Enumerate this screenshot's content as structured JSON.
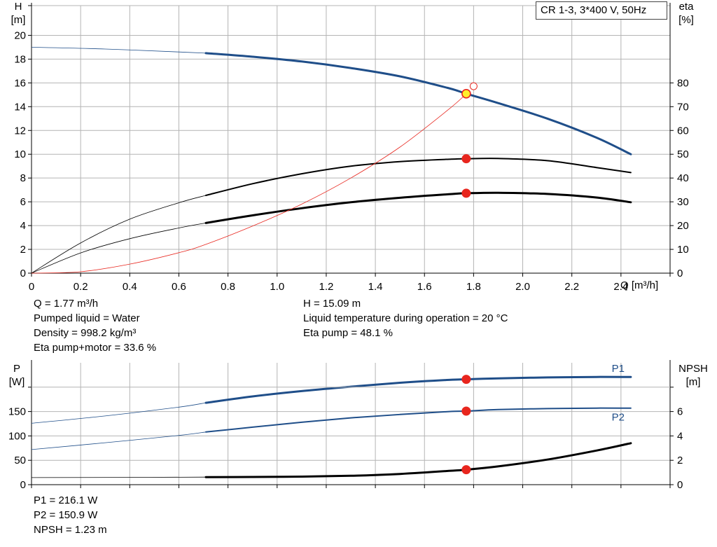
{
  "title": "CR 1-3, 3*400 V, 50Hz",
  "colors": {
    "blue": "#1f4e89",
    "black": "#000000",
    "red": "#e8261e",
    "eta": "#e8261e",
    "grid": "#b4b4b4"
  },
  "top_panel": {
    "ylabel_left": {
      "name": "H",
      "unit": "[m]"
    },
    "ylabel_right": {
      "name": "eta",
      "unit": "[%]"
    },
    "xlabel": "Q [m³/h]",
    "info_left": [
      "Q = 1.77 m³/h",
      "Pumped liquid = Water",
      "Density = 998.2 kg/m³",
      "Eta pump+motor = 33.6 %"
    ],
    "info_right": [
      "H = 15.09 m",
      "Liquid temperature during operation = 20 °C",
      "Eta pump = 48.1 %"
    ]
  },
  "bottom_panel": {
    "ylabel_left": {
      "name": "P",
      "unit": "[W]"
    },
    "ylabel_right": {
      "name": "NPSH",
      "unit": "[m]"
    },
    "info": [
      "P1 = 216.1 W",
      "P2 = 150.9 W",
      "NPSH = 1.23 m"
    ]
  },
  "chart_data": [
    {
      "type": "line",
      "x_ticks": [
        "0",
        "0.2",
        "0.4",
        "0.6",
        "0.8",
        "1.0",
        "1.2",
        "1.4",
        "1.6",
        "1.8",
        "2.0",
        "2.2",
        "2.4"
      ],
      "y_ticks_left": [
        "0",
        "2",
        "4",
        "6",
        "8",
        "10",
        "12",
        "14",
        "16",
        "18",
        "20"
      ],
      "y_ticks_right": [
        "0",
        "10",
        "20",
        "30",
        "40",
        "50",
        "60",
        "70",
        "80"
      ],
      "xlim": [
        0,
        2.6
      ],
      "ylim_left": [
        0,
        22.5
      ],
      "ylim_right": [
        0,
        112.5
      ],
      "grid": true,
      "operating_range": [
        0.71,
        2.44
      ],
      "duty_point": {
        "Q": 1.77,
        "H": 15.09
      },
      "series": [
        {
          "key": "H",
          "axis": "left",
          "color": "blue",
          "x": [
            0,
            0.3,
            0.6,
            0.71,
            0.9,
            1.1,
            1.3,
            1.5,
            1.7,
            1.77,
            1.9,
            2.1,
            2.3,
            2.44
          ],
          "y": [
            19.0,
            18.85,
            18.6,
            18.5,
            18.2,
            17.8,
            17.25,
            16.55,
            15.55,
            15.09,
            14.3,
            13.0,
            11.4,
            10.0
          ]
        },
        {
          "key": "eta_total",
          "axis": "right",
          "color": "black",
          "x": [
            0,
            0.2,
            0.4,
            0.6,
            0.71,
            0.9,
            1.1,
            1.3,
            1.5,
            1.7,
            1.77,
            1.9,
            2.1,
            2.3,
            2.44
          ],
          "y": [
            0,
            8.5,
            14.5,
            19.0,
            21.1,
            24.3,
            27.3,
            29.8,
            31.7,
            33.2,
            33.6,
            33.8,
            33.3,
            31.8,
            29.8
          ]
        },
        {
          "key": "eta_pump",
          "axis": "right",
          "color": "black",
          "x": [
            0,
            0.2,
            0.4,
            0.6,
            0.71,
            0.9,
            1.1,
            1.3,
            1.5,
            1.7,
            1.77,
            1.9,
            2.1,
            2.3,
            2.44
          ],
          "y": [
            0,
            12.7,
            22.7,
            29.6,
            32.7,
            37.6,
            41.8,
            45.0,
            46.9,
            47.9,
            48.1,
            48.2,
            47.3,
            44.4,
            42.3
          ]
        },
        {
          "key": "eta_parabola",
          "axis": "right",
          "color": "eta",
          "x": [
            0,
            0.2,
            0.4,
            0.6,
            0.71,
            0.9,
            1.1,
            1.3,
            1.5,
            1.7,
            1.77
          ],
          "y": [
            0,
            0.6,
            3.8,
            8.6,
            12.1,
            19.8,
            29.0,
            40.0,
            53.0,
            69.0,
            75.4
          ]
        }
      ],
      "points": [
        {
          "x": 1.77,
          "y": 15.09,
          "axis": "left",
          "style": "yellow"
        },
        {
          "x": 1.8,
          "y": 78.6,
          "axis": "right",
          "style": "hollow"
        },
        {
          "x": 1.77,
          "y": 48.1,
          "axis": "right",
          "style": "red"
        },
        {
          "x": 1.77,
          "y": 33.6,
          "axis": "right",
          "style": "red"
        }
      ]
    },
    {
      "type": "line",
      "x_ticks": [
        "0",
        "0.2",
        "0.4",
        "0.6",
        "0.8",
        "1.0",
        "1.2",
        "1.4",
        "1.6",
        "1.8",
        "2.0",
        "2.2",
        "2.4"
      ],
      "y_ticks_left": [
        "0",
        "50",
        "100",
        "150"
      ],
      "y_ticks_right": [
        "0",
        "2",
        "4",
        "6"
      ],
      "xlim": [
        0,
        2.6
      ],
      "ylim_left": [
        0,
        250
      ],
      "ylim_right": [
        0,
        10
      ],
      "grid": true,
      "operating_range": [
        0.71,
        2.44
      ],
      "series": [
        {
          "key": "P1",
          "name": "P1",
          "axis": "left",
          "color": "blue",
          "x": [
            0,
            0.3,
            0.6,
            0.71,
            0.9,
            1.1,
            1.3,
            1.5,
            1.7,
            1.77,
            1.9,
            2.1,
            2.3,
            2.44
          ],
          "y": [
            126,
            141,
            159,
            168,
            181,
            192,
            201,
            209,
            215,
            216.1,
            218,
            220,
            221,
            221
          ]
        },
        {
          "key": "P2",
          "name": "P2",
          "axis": "left",
          "color": "blue",
          "x": [
            0,
            0.3,
            0.6,
            0.71,
            0.9,
            1.1,
            1.3,
            1.5,
            1.7,
            1.77,
            1.9,
            2.1,
            2.3,
            2.44
          ],
          "y": [
            72,
            86,
            101,
            108,
            118,
            128,
            137,
            144,
            150,
            150.9,
            154,
            156,
            157,
            157
          ]
        },
        {
          "key": "NPSH",
          "axis": "right",
          "color": "black",
          "x": [
            0,
            0.4,
            0.71,
            0.9,
            1.1,
            1.3,
            1.5,
            1.7,
            1.77,
            1.9,
            2.1,
            2.3,
            2.44
          ],
          "y": [
            0.58,
            0.6,
            0.62,
            0.63,
            0.66,
            0.73,
            0.88,
            1.13,
            1.23,
            1.5,
            2.06,
            2.8,
            3.4
          ]
        }
      ],
      "points": [
        {
          "x": 1.77,
          "y": 216.1,
          "axis": "left",
          "style": "red"
        },
        {
          "x": 1.77,
          "y": 150.9,
          "axis": "left",
          "style": "red"
        },
        {
          "x": 1.77,
          "y": 1.23,
          "axis": "right",
          "style": "red"
        }
      ]
    }
  ]
}
